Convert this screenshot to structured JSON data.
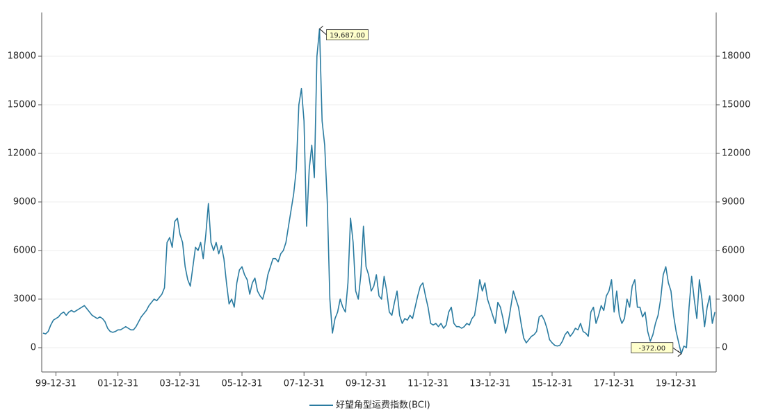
{
  "chart_data": {
    "type": "line",
    "categories": [
      null,
      null,
      null,
      null,
      null,
      "99-12-31",
      null,
      null,
      null,
      null,
      null,
      null,
      null,
      null,
      null,
      null,
      null,
      null,
      null,
      null,
      null,
      null,
      null,
      null,
      null,
      null,
      null,
      null,
      null,
      "01-12-31",
      null,
      null,
      null,
      null,
      null,
      null,
      null,
      null,
      null,
      null,
      null,
      null,
      null,
      null,
      null,
      null,
      null,
      null,
      null,
      null,
      null,
      null,
      null,
      "03-12-31",
      null,
      null,
      null,
      null,
      null,
      null,
      null,
      null,
      null,
      null,
      null,
      null,
      null,
      null,
      null,
      null,
      null,
      null,
      null,
      null,
      null,
      null,
      null,
      "05-12-31",
      null,
      null,
      null,
      null,
      null,
      null,
      null,
      null,
      null,
      null,
      null,
      null,
      null,
      null,
      null,
      null,
      null,
      null,
      null,
      null,
      null,
      null,
      null,
      "07-12-31",
      null,
      null,
      null,
      null,
      null,
      null,
      null,
      null,
      null,
      null,
      null,
      null,
      null,
      null,
      null,
      null,
      null,
      null,
      null,
      null,
      null,
      null,
      null,
      "09-12-31",
      null,
      null,
      null,
      null,
      null,
      null,
      null,
      null,
      null,
      null,
      null,
      null,
      null,
      null,
      null,
      null,
      null,
      null,
      null,
      null,
      null,
      null,
      null,
      "11-12-31",
      null,
      null,
      null,
      null,
      null,
      null,
      null,
      null,
      null,
      null,
      null,
      null,
      null,
      null,
      null,
      null,
      null,
      null,
      null,
      null,
      null,
      null,
      null,
      "13-12-31",
      null,
      null,
      null,
      null,
      null,
      null,
      null,
      null,
      null,
      null,
      null,
      null,
      null,
      null,
      null,
      null,
      null,
      null,
      null,
      null,
      null,
      null,
      null,
      "15-12-31",
      null,
      null,
      null,
      null,
      null,
      null,
      null,
      null,
      null,
      null,
      null,
      null,
      null,
      null,
      null,
      null,
      null,
      null,
      null,
      null,
      null,
      null,
      null,
      "17-12-31",
      null,
      null,
      null,
      null,
      null,
      null,
      null,
      null,
      null,
      null,
      null,
      null,
      null,
      null,
      null,
      null,
      null,
      null,
      null,
      null,
      null,
      null,
      null,
      "19-12-31",
      null,
      null,
      null,
      null,
      null,
      null,
      null,
      null,
      null,
      null,
      null,
      null,
      null,
      null,
      null
    ],
    "series": [
      {
        "name": "好望角型运费指数(BCI)",
        "color": "#2a7ba0",
        "values": [
          900,
          850,
          1000,
          1400,
          1700,
          1800,
          1900,
          2100,
          2200,
          2000,
          2200,
          2300,
          2200,
          2300,
          2400,
          2500,
          2600,
          2400,
          2200,
          2000,
          1900,
          1800,
          1900,
          1800,
          1600,
          1200,
          1000,
          950,
          1000,
          1100,
          1100,
          1200,
          1300,
          1200,
          1100,
          1100,
          1300,
          1600,
          1900,
          2100,
          2300,
          2600,
          2800,
          3000,
          2900,
          3100,
          3300,
          3700,
          6500,
          6800,
          6200,
          7800,
          8000,
          7000,
          6500,
          5000,
          4200,
          3800,
          5000,
          6200,
          6000,
          6500,
          5500,
          7000,
          8900,
          6500,
          6000,
          6500,
          5800,
          6300,
          5500,
          4000,
          2700,
          3000,
          2500,
          4000,
          4800,
          5000,
          4500,
          4200,
          3300,
          4000,
          4300,
          3500,
          3200,
          3000,
          3600,
          4500,
          5000,
          5500,
          5500,
          5300,
          5800,
          6000,
          6500,
          7500,
          8500,
          9500,
          11000,
          15000,
          16000,
          14000,
          7500,
          11000,
          12500,
          10500,
          18000,
          19687,
          14000,
          12500,
          9000,
          3000,
          900,
          1800,
          2200,
          3000,
          2500,
          2200,
          4000,
          8000,
          6500,
          3500,
          3000,
          4500,
          7500,
          5000,
          4500,
          3500,
          3800,
          4500,
          3200,
          3000,
          4400,
          3500,
          2200,
          2000,
          2800,
          3500,
          2000,
          1500,
          1800,
          1700,
          2000,
          1800,
          2500,
          3200,
          3800,
          4000,
          3200,
          2500,
          1500,
          1400,
          1500,
          1300,
          1500,
          1200,
          1400,
          2200,
          2500,
          1500,
          1300,
          1300,
          1200,
          1300,
          1500,
          1400,
          1800,
          2000,
          3000,
          4200,
          3500,
          4000,
          3000,
          2500,
          2000,
          1500,
          2800,
          2500,
          1800,
          900,
          1500,
          2500,
          3500,
          3000,
          2500,
          1500,
          600,
          300,
          500,
          700,
          800,
          1000,
          1900,
          2000,
          1700,
          1200,
          500,
          300,
          150,
          100,
          150,
          400,
          800,
          1000,
          700,
          900,
          1200,
          1100,
          1500,
          1000,
          900,
          700,
          2200,
          2500,
          1500,
          2000,
          2600,
          2300,
          3200,
          3500,
          4200,
          2200,
          3500,
          2000,
          1500,
          1800,
          3000,
          2500,
          3800,
          4200,
          2500,
          2500,
          1900,
          2200,
          1000,
          400,
          800,
          1500,
          2000,
          3000,
          4500,
          5000,
          4000,
          3500,
          2000,
          1000,
          300,
          -372,
          100,
          0,
          2500,
          4400,
          3000,
          1800,
          4200,
          3000,
          1300,
          2500,
          3200,
          1500,
          2200
        ]
      }
    ],
    "ylim": [
      -1500,
      20700
    ],
    "yticks": [
      0,
      3000,
      6000,
      9000,
      12000,
      15000,
      18000
    ],
    "grid": true,
    "legend": "bottom",
    "annotations": [
      {
        "value": 19687,
        "label": "19,687.00"
      },
      {
        "value": -372,
        "label": "-372.00"
      }
    ]
  }
}
